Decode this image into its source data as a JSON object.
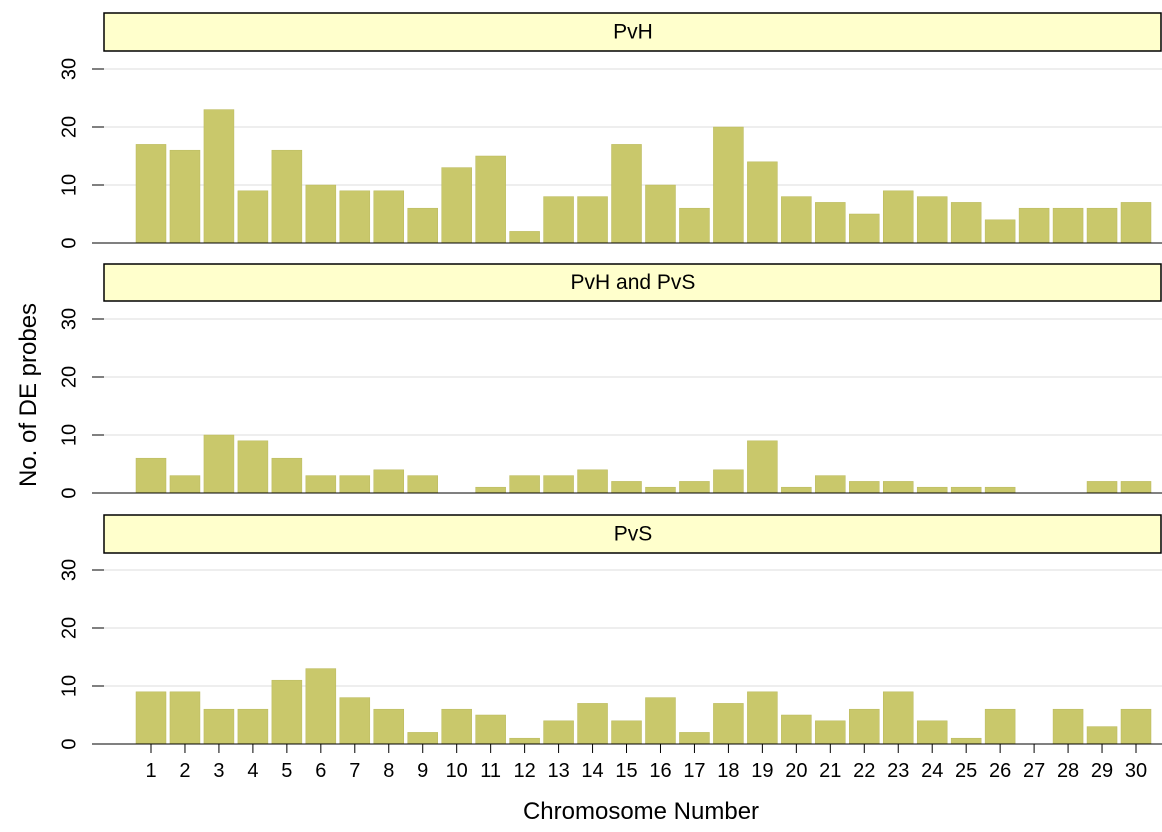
{
  "colors": {
    "bar": "#c9c86b",
    "bar_edge": "#b9b85c",
    "strip": "#ffffcc",
    "grid": "#dedede",
    "axis": "#000000",
    "text": "#000000"
  },
  "chart_data": {
    "type": "bar",
    "layout": "faceted-vertical",
    "xlabel": "Chromosome Number",
    "ylabel": "No. of DE probes",
    "ylim": [
      0,
      30
    ],
    "yticks": [
      0,
      10,
      20,
      30
    ],
    "grid": true,
    "categories": [
      "1",
      "2",
      "3",
      "4",
      "5",
      "6",
      "7",
      "8",
      "9",
      "10",
      "11",
      "12",
      "13",
      "14",
      "15",
      "16",
      "17",
      "18",
      "19",
      "20",
      "21",
      "22",
      "23",
      "24",
      "25",
      "26",
      "27",
      "28",
      "29",
      "30"
    ],
    "panels": [
      {
        "name": "PvH",
        "values": [
          17,
          16,
          23,
          9,
          16,
          10,
          9,
          9,
          6,
          13,
          15,
          2,
          8,
          8,
          17,
          10,
          6,
          20,
          14,
          8,
          7,
          5,
          9,
          8,
          7,
          4,
          6,
          6,
          6,
          7
        ]
      },
      {
        "name": "PvH and PvS",
        "values": [
          6,
          3,
          10,
          9,
          6,
          3,
          3,
          4,
          3,
          0,
          1,
          3,
          3,
          4,
          2,
          1,
          2,
          4,
          9,
          1,
          3,
          2,
          2,
          1,
          1,
          1,
          0,
          0,
          2,
          2
        ]
      },
      {
        "name": "PvS",
        "values": [
          9,
          9,
          6,
          6,
          11,
          13,
          8,
          6,
          2,
          6,
          5,
          1,
          4,
          7,
          4,
          8,
          2,
          7,
          9,
          5,
          4,
          6,
          9,
          4,
          1,
          6,
          0,
          6,
          3,
          6
        ]
      }
    ]
  }
}
